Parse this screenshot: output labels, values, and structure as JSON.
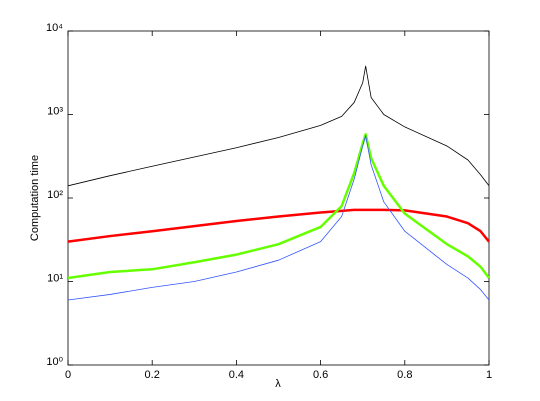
{
  "chart_data": {
    "type": "line",
    "xlabel": "λ",
    "ylabel": "Computation time",
    "x": [
      0,
      0.1,
      0.2,
      0.3,
      0.4,
      0.5,
      0.6,
      0.65,
      0.68,
      0.7,
      0.707,
      0.72,
      0.75,
      0.8,
      0.9,
      0.95,
      0.98,
      1
    ],
    "series": [
      {
        "color": "#000000",
        "line_width": 0.8,
        "values": [
          140,
          185,
          240,
          310,
          400,
          530,
          740,
          950,
          1400,
          2400,
          3800,
          1600,
          1000,
          710,
          420,
          285,
          190,
          140
        ]
      },
      {
        "color": "#ff0000",
        "line_width": 2.5,
        "values": [
          30,
          35,
          40,
          46,
          53,
          60,
          67,
          70,
          72,
          72,
          72,
          72,
          72,
          71,
          60,
          50,
          40,
          30
        ]
      },
      {
        "color": "#66ff00",
        "line_width": 2.5,
        "values": [
          11,
          13,
          14,
          17,
          21,
          28,
          45,
          80,
          200,
          450,
          580,
          300,
          140,
          65,
          28,
          20,
          15,
          11
        ]
      },
      {
        "color": "#3355ff",
        "line_width": 0.8,
        "values": [
          6,
          7,
          8.5,
          10,
          13,
          18,
          30,
          60,
          170,
          420,
          560,
          250,
          90,
          40,
          16,
          11,
          8,
          6
        ]
      }
    ],
    "xlim": [
      0,
      1
    ],
    "xticks": [
      0,
      0.2,
      0.4,
      0.6,
      0.8,
      1
    ],
    "ylim": [
      1,
      10000
    ],
    "yscale": "log",
    "yticks": [
      {
        "value": 1,
        "label": "10⁰"
      },
      {
        "value": 10,
        "label": "10¹"
      },
      {
        "value": 100,
        "label": "10²"
      },
      {
        "value": 1000,
        "label": "10³"
      },
      {
        "value": 10000,
        "label": "10⁴"
      }
    ],
    "grid": false
  }
}
